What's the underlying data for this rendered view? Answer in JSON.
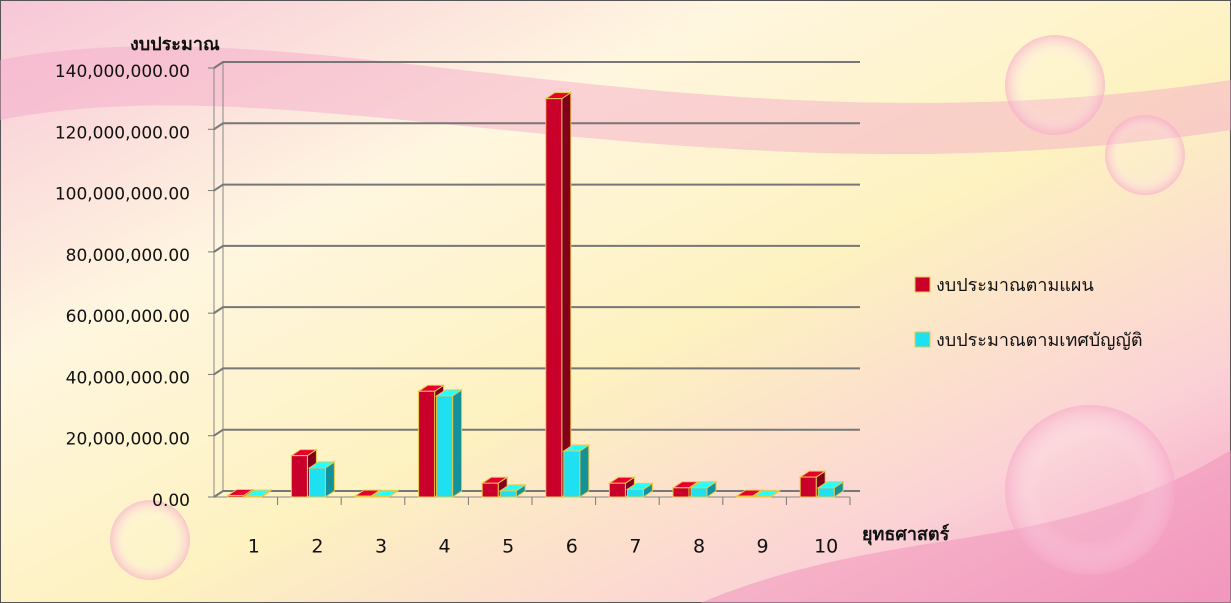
{
  "chart_data": {
    "type": "bar3d",
    "y_axis_label": "งบประมาณ",
    "x_axis_label": "ยุทธศาสตร์",
    "categories": [
      "1",
      "2",
      "3",
      "4",
      "5",
      "6",
      "7",
      "8",
      "9",
      "10"
    ],
    "series": [
      {
        "name": "งบประมาณตามแผน",
        "color": "#c8002a",
        "values": [
          500000,
          13500000,
          300000,
          34500000,
          4500000,
          130000000,
          4500000,
          3000000,
          300000,
          6500000
        ]
      },
      {
        "name": "งบประมาณตามเทศบัญญัติ",
        "color": "#1fe0f0",
        "values": [
          300000,
          9500000,
          200000,
          33000000,
          2000000,
          15000000,
          2500000,
          3000000,
          200000,
          3000000
        ]
      }
    ],
    "ylim": [
      0,
      140000000
    ],
    "yticks": [
      {
        "value": 0,
        "label": "0.00"
      },
      {
        "value": 20000000,
        "label": "20,000,000.00"
      },
      {
        "value": 40000000,
        "label": "40,000,000.00"
      },
      {
        "value": 60000000,
        "label": "60,000,000.00"
      },
      {
        "value": 80000000,
        "label": "80,000,000.00"
      },
      {
        "value": 100000000,
        "label": "100,000,000.00"
      },
      {
        "value": 120000000,
        "label": "120,000,000.00"
      },
      {
        "value": 140000000,
        "label": "140,000,000.00"
      }
    ],
    "grid": true,
    "legend": "right"
  }
}
